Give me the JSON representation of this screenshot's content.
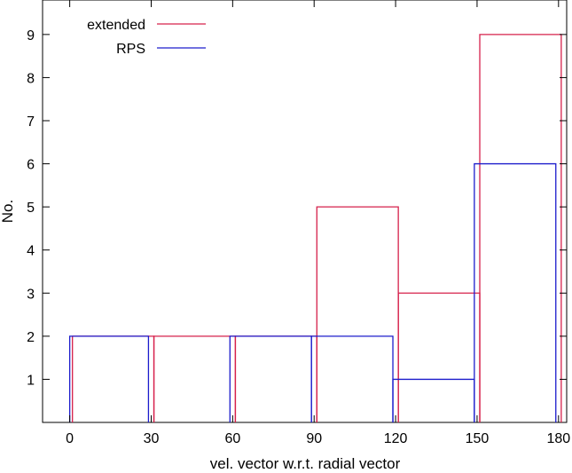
{
  "chart_data": {
    "type": "step",
    "title": "",
    "xlabel": "vel. vector w.r.t. radial vector",
    "ylabel": "No.",
    "xlim": [
      -10,
      183
    ],
    "ylim": [
      0,
      9.8
    ],
    "xticks": [
      0,
      30,
      60,
      90,
      120,
      150,
      180
    ],
    "yticks": [
      1,
      2,
      3,
      4,
      5,
      6,
      7,
      8,
      9
    ],
    "grid": false,
    "legend_position": "top-left",
    "series": [
      {
        "name": "extended",
        "color": "#d6204b",
        "edges": [
          1,
          31,
          61,
          91,
          121,
          151,
          181
        ],
        "values": [
          2,
          2,
          2,
          5,
          3,
          9
        ]
      },
      {
        "name": "RPS",
        "color": "#1c1ccc",
        "edges": [
          0,
          29,
          59,
          89,
          119,
          149,
          179
        ],
        "values": [
          2,
          0,
          2,
          2,
          1,
          6
        ]
      }
    ]
  }
}
